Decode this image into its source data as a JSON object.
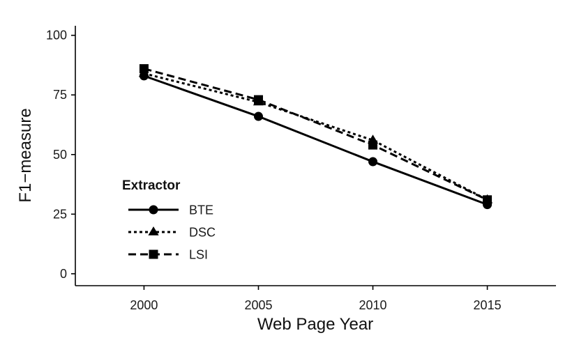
{
  "chart_data": {
    "type": "line",
    "x": [
      2000,
      2005,
      2010,
      2015
    ],
    "series": [
      {
        "name": "BTE",
        "values": [
          83,
          66,
          47,
          29
        ],
        "line_style": "solid",
        "marker": "circle"
      },
      {
        "name": "DSC",
        "values": [
          84,
          72,
          56,
          31
        ],
        "line_style": "dotted",
        "marker": "triangle"
      },
      {
        "name": "LSI",
        "values": [
          86,
          73,
          54,
          31
        ],
        "line_style": "dashed",
        "marker": "square"
      }
    ],
    "xlabel": "Web Page Year",
    "ylabel": "F1−measure",
    "xlim": [
      1997,
      2018
    ],
    "ylim": [
      -5,
      104
    ],
    "xticks": [
      "2000",
      "2005",
      "2010",
      "2015"
    ],
    "yticks": [
      "0",
      "25",
      "50",
      "75",
      "100"
    ],
    "legend_title": "Extractor",
    "legend_position": "bottom-left",
    "grid": false,
    "color": "#000000"
  }
}
